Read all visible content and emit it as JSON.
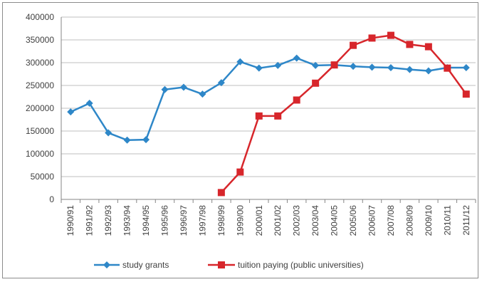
{
  "chart_data": {
    "type": "line",
    "title": "",
    "xlabel": "",
    "ylabel": "",
    "categories": [
      "1990/91",
      "1991/92",
      "1992/93",
      "1993/94",
      "1994/95",
      "1995/96",
      "1996/97",
      "1997/98",
      "1998/99",
      "1999/00",
      "2000/01",
      "2001/02",
      "2002/03",
      "2003/04",
      "2004/05",
      "2005/06",
      "2006/07",
      "2007/08",
      "2008/09",
      "2009/10",
      "2010/11",
      "2011/12"
    ],
    "ylim": [
      0,
      400000
    ],
    "yticks": [
      0,
      50000,
      100000,
      150000,
      200000,
      250000,
      300000,
      350000,
      400000
    ],
    "grid": true,
    "legend_position": "bottom",
    "series": [
      {
        "name": "study grants",
        "color": "#2e87c8",
        "marker": "diamond",
        "values": [
          192000,
          211000,
          146000,
          130000,
          131000,
          241000,
          246000,
          231000,
          256000,
          302000,
          288000,
          294000,
          310000,
          294000,
          295000,
          292000,
          290000,
          289000,
          285000,
          282000,
          289000,
          289000
        ]
      },
      {
        "name": "tuition paying (public universities)",
        "color": "#d7262b",
        "marker": "square",
        "values": [
          null,
          null,
          null,
          null,
          null,
          null,
          null,
          null,
          15000,
          60000,
          183000,
          183000,
          218000,
          255000,
          295000,
          338000,
          354000,
          360000,
          340000,
          335000,
          288000,
          231000
        ]
      }
    ]
  }
}
